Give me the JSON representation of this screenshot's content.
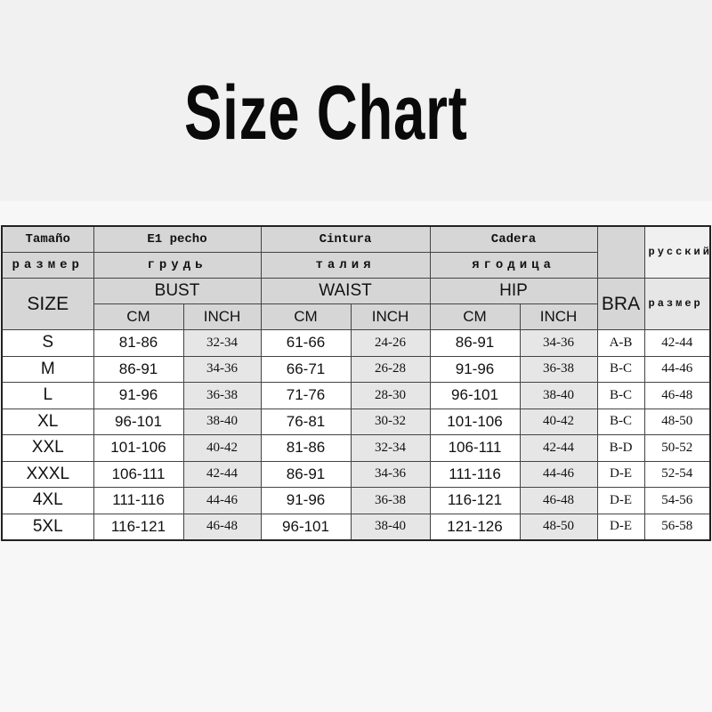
{
  "title": "Size Chart",
  "header": {
    "row1": [
      "Tamaño",
      "E1 pecho",
      "Cintura",
      "Cadera"
    ],
    "row2": [
      "размер",
      "грудь",
      "талия",
      "ягодица"
    ],
    "russian_top": "русский",
    "russian_bottom": "размер",
    "size": "SIZE",
    "groups": [
      "BUST",
      "WAIST",
      "HIP"
    ],
    "bra": "BRA",
    "units": [
      "CM",
      "INCH",
      "CM",
      "INCH",
      "CM",
      "INCH"
    ]
  },
  "rows": [
    [
      "S",
      "81-86",
      "32-34",
      "61-66",
      "24-26",
      "86-91",
      "34-36",
      "A-B",
      "42-44"
    ],
    [
      "M",
      "86-91",
      "34-36",
      "66-71",
      "26-28",
      "91-96",
      "36-38",
      "B-C",
      "44-46"
    ],
    [
      "L",
      "91-96",
      "36-38",
      "71-76",
      "28-30",
      "96-101",
      "38-40",
      "B-C",
      "46-48"
    ],
    [
      "XL",
      "96-101",
      "38-40",
      "76-81",
      "30-32",
      "101-106",
      "40-42",
      "B-C",
      "48-50"
    ],
    [
      "XXL",
      "101-106",
      "40-42",
      "81-86",
      "32-34",
      "106-111",
      "42-44",
      "B-D",
      "50-52"
    ],
    [
      "XXXL",
      "106-111",
      "42-44",
      "86-91",
      "34-36",
      "111-116",
      "44-46",
      "D-E",
      "52-54"
    ],
    [
      "4XL",
      "111-116",
      "44-46",
      "91-96",
      "36-38",
      "116-121",
      "46-48",
      "D-E",
      "54-56"
    ],
    [
      "5XL",
      "116-121",
      "46-48",
      "96-101",
      "38-40",
      "121-126",
      "48-50",
      "D-E",
      "56-58"
    ]
  ]
}
